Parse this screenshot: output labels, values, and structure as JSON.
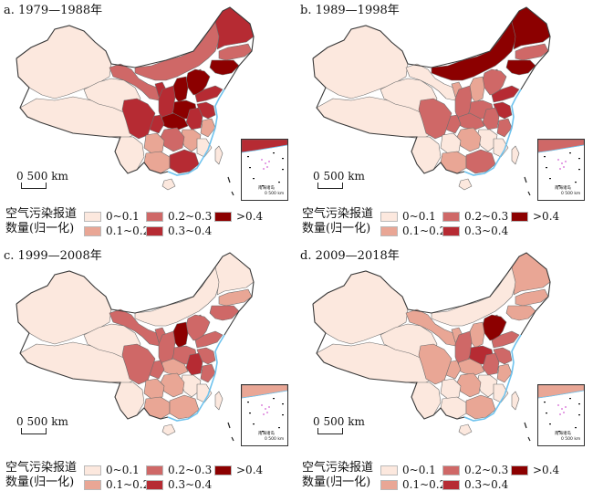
{
  "figure": {
    "colors": {
      "c0": "#fce8de",
      "c1": "#e9a695",
      "c2": "#cf6867",
      "c3": "#b62b33",
      "c4": "#8c0000",
      "border": "#6e6e6e",
      "coast": "#6fc3ee"
    },
    "legend_title_line1": "空气污染报道",
    "legend_title_line2": "数量(归一化)",
    "legend_items": [
      {
        "label": "0~0.1",
        "color": "#fce8de"
      },
      {
        "label": "0.1~0.2",
        "color": "#e9a695"
      },
      {
        "label": "0.2~0.3",
        "color": "#cf6867"
      },
      {
        "label": "0.3~0.4",
        "color": "#b62b33"
      },
      {
        "label": ">0.4",
        "color": "#8c0000"
      }
    ],
    "scale_label": "500 km",
    "scale_zero": "0",
    "inset_label": "南海诸岛",
    "inset_scale_label": "0  500 km",
    "panels": [
      {
        "title": "a. 1979—1988年",
        "regions": {
          "xinjiang": 0,
          "xizang": 0,
          "qinghai": 0,
          "gansu": 2,
          "neimenggu": 2,
          "heilongjiang": 3,
          "jilin": 2,
          "liaoning": 4,
          "beijing": 4,
          "hebei": 4,
          "shanxi": 4,
          "shaanxi": 3,
          "ningxia": 3,
          "sichuan": 3,
          "chongqing": 3,
          "yunnan": 0,
          "guizhou": 1,
          "guangxi": 1,
          "guangdong": 3,
          "hunan": 2,
          "hubei": 4,
          "henan": 4,
          "shandong": 3,
          "jiangsu": 3,
          "anhui": 3,
          "zhejiang": 1,
          "jiangxi": 1,
          "fujian": 0,
          "hainan": 0,
          "taiwan": 0
        }
      },
      {
        "title": "b. 1989—1998年",
        "regions": {
          "xinjiang": 0,
          "xizang": 0,
          "qinghai": 0,
          "gansu": 0,
          "neimenggu": 4,
          "heilongjiang": 4,
          "jilin": 2,
          "liaoning": 4,
          "beijing": 2,
          "hebei": 2,
          "shanxi": 1,
          "shaanxi": 2,
          "ningxia": 1,
          "sichuan": 2,
          "chongqing": 2,
          "yunnan": 0,
          "guizhou": 0,
          "guangxi": 1,
          "guangdong": 2,
          "hunan": 1,
          "hubei": 2,
          "henan": 2,
          "shandong": 3,
          "jiangsu": 3,
          "anhui": 2,
          "zhejiang": 2,
          "jiangxi": 0,
          "fujian": 0,
          "hainan": 0,
          "taiwan": 0
        }
      },
      {
        "title": "c. 1999—2008年",
        "regions": {
          "xinjiang": 0,
          "xizang": 0,
          "qinghai": 0,
          "gansu": 2,
          "neimenggu": 0,
          "heilongjiang": 0,
          "jilin": 1,
          "liaoning": 2,
          "beijing": 2,
          "hebei": 2,
          "shanxi": 4,
          "shaanxi": 2,
          "ningxia": 2,
          "sichuan": 2,
          "chongqing": 2,
          "yunnan": 0,
          "guizhou": 1,
          "guangxi": 1,
          "guangdong": 1,
          "hunan": 1,
          "hubei": 1,
          "henan": 2,
          "shandong": 2,
          "jiangsu": 2,
          "anhui": 3,
          "zhejiang": 2,
          "jiangxi": 0,
          "fujian": 0,
          "hainan": 0,
          "taiwan": 0
        }
      },
      {
        "title": "d. 2009—2018年",
        "regions": {
          "xinjiang": 0,
          "xizang": 0,
          "qinghai": 0,
          "gansu": 1,
          "neimenggu": 0,
          "heilongjiang": 1,
          "jilin": 1,
          "liaoning": 1,
          "beijing": 2,
          "hebei": 4,
          "shanxi": 1,
          "shaanxi": 2,
          "ningxia": 1,
          "sichuan": 1,
          "chongqing": 1,
          "yunnan": 0,
          "guizhou": 0,
          "guangxi": 0,
          "guangdong": 1,
          "hunan": 1,
          "hubei": 1,
          "henan": 3,
          "shandong": 2,
          "jiangsu": 2,
          "anhui": 2,
          "zhejiang": 1,
          "jiangxi": 0,
          "fujian": 0,
          "hainan": 0,
          "taiwan": 0
        }
      }
    ]
  }
}
